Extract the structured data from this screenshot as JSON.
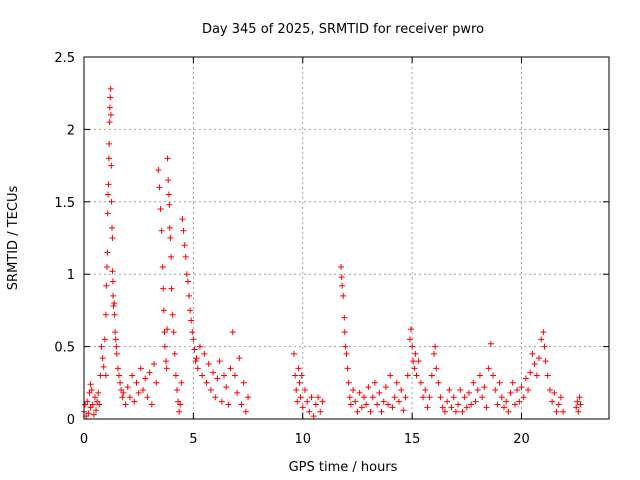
{
  "chart_data": {
    "type": "scatter",
    "title": "Day 345 of 2025, SRMTID for receiver pwro",
    "xlabel": "GPS time / hours",
    "ylabel": "SRMTID / TECUs",
    "xlim": [
      0,
      24
    ],
    "ylim": [
      0,
      2.5
    ],
    "xticks": [
      0,
      5,
      10,
      15,
      20
    ],
    "xtick_labels": [
      "0",
      "5",
      "10",
      "15",
      "20"
    ],
    "yticks": [
      0,
      0.5,
      1,
      1.5,
      2,
      2.5
    ],
    "ytick_labels": [
      "0",
      "0.5",
      "1",
      "1.5",
      "2",
      "2.5"
    ],
    "grid": true,
    "marker": "+",
    "marker_color": "#ff0000",
    "series": [
      {
        "name": "pwro",
        "points": [
          [
            0.0,
            0.05
          ],
          [
            0.05,
            0.1
          ],
          [
            0.1,
            0.02
          ],
          [
            0.15,
            0.12
          ],
          [
            0.2,
            0.04
          ],
          [
            0.25,
            0.18
          ],
          [
            0.3,
            0.08
          ],
          [
            0.3,
            0.24
          ],
          [
            0.35,
            0.2
          ],
          [
            0.4,
            0.1
          ],
          [
            0.45,
            0.03
          ],
          [
            0.5,
            0.15
          ],
          [
            0.55,
            0.06
          ],
          [
            0.6,
            0.12
          ],
          [
            0.65,
            0.18
          ],
          [
            0.7,
            0.1
          ],
          [
            0.75,
            0.3
          ],
          [
            0.8,
            0.5
          ],
          [
            0.85,
            0.42
          ],
          [
            0.9,
            0.36
          ],
          [
            0.95,
            0.55
          ],
          [
            1.0,
            0.3
          ],
          [
            1.0,
            0.72
          ],
          [
            1.02,
            0.92
          ],
          [
            1.05,
            1.05
          ],
          [
            1.07,
            1.15
          ],
          [
            1.08,
            1.42
          ],
          [
            1.1,
            1.55
          ],
          [
            1.12,
            1.62
          ],
          [
            1.14,
            1.8
          ],
          [
            1.15,
            1.9
          ],
          [
            1.17,
            2.05
          ],
          [
            1.18,
            2.15
          ],
          [
            1.2,
            2.22
          ],
          [
            1.22,
            2.28
          ],
          [
            1.23,
            2.1
          ],
          [
            1.25,
            1.75
          ],
          [
            1.26,
            1.5
          ],
          [
            1.28,
            1.32
          ],
          [
            1.3,
            1.25
          ],
          [
            1.3,
            1.02
          ],
          [
            1.32,
            0.95
          ],
          [
            1.33,
            0.85
          ],
          [
            1.35,
            0.78
          ],
          [
            1.38,
            0.8
          ],
          [
            1.4,
            0.72
          ],
          [
            1.42,
            0.6
          ],
          [
            1.45,
            0.55
          ],
          [
            1.48,
            0.5
          ],
          [
            1.5,
            0.45
          ],
          [
            1.55,
            0.35
          ],
          [
            1.6,
            0.3
          ],
          [
            1.65,
            0.25
          ],
          [
            1.7,
            0.2
          ],
          [
            1.75,
            0.15
          ],
          [
            1.8,
            0.18
          ],
          [
            1.9,
            0.1
          ],
          [
            2.0,
            0.22
          ],
          [
            2.1,
            0.15
          ],
          [
            2.2,
            0.3
          ],
          [
            2.3,
            0.12
          ],
          [
            2.4,
            0.25
          ],
          [
            2.5,
            0.18
          ],
          [
            2.6,
            0.35
          ],
          [
            2.7,
            0.2
          ],
          [
            2.8,
            0.28
          ],
          [
            2.9,
            0.15
          ],
          [
            3.0,
            0.32
          ],
          [
            3.1,
            0.1
          ],
          [
            3.2,
            0.38
          ],
          [
            3.3,
            0.25
          ],
          [
            3.4,
            1.72
          ],
          [
            3.45,
            1.6
          ],
          [
            3.5,
            1.45
          ],
          [
            3.55,
            1.3
          ],
          [
            3.6,
            1.05
          ],
          [
            3.62,
            0.9
          ],
          [
            3.65,
            0.75
          ],
          [
            3.68,
            0.6
          ],
          [
            3.7,
            0.5
          ],
          [
            3.75,
            0.4
          ],
          [
            3.78,
            0.35
          ],
          [
            3.8,
            0.62
          ],
          [
            3.82,
            1.8
          ],
          [
            3.85,
            1.65
          ],
          [
            3.88,
            1.55
          ],
          [
            3.9,
            1.48
          ],
          [
            3.92,
            1.32
          ],
          [
            3.95,
            1.25
          ],
          [
            3.98,
            1.12
          ],
          [
            4.0,
            0.9
          ],
          [
            4.05,
            0.72
          ],
          [
            4.1,
            0.6
          ],
          [
            4.15,
            0.45
          ],
          [
            4.2,
            0.3
          ],
          [
            4.25,
            0.2
          ],
          [
            4.3,
            0.12
          ],
          [
            4.35,
            0.05
          ],
          [
            4.4,
            0.1
          ],
          [
            4.45,
            0.25
          ],
          [
            4.5,
            1.38
          ],
          [
            4.55,
            1.3
          ],
          [
            4.6,
            1.2
          ],
          [
            4.65,
            1.12
          ],
          [
            4.7,
            1.0
          ],
          [
            4.75,
            0.95
          ],
          [
            4.8,
            0.85
          ],
          [
            4.85,
            0.75
          ],
          [
            4.9,
            0.68
          ],
          [
            4.95,
            0.6
          ],
          [
            5.0,
            0.55
          ],
          [
            5.05,
            0.48
          ],
          [
            5.1,
            0.4
          ],
          [
            5.15,
            0.42
          ],
          [
            5.2,
            0.35
          ],
          [
            5.3,
            0.5
          ],
          [
            5.4,
            0.3
          ],
          [
            5.5,
            0.45
          ],
          [
            5.6,
            0.25
          ],
          [
            5.7,
            0.38
          ],
          [
            5.8,
            0.2
          ],
          [
            5.9,
            0.32
          ],
          [
            6.0,
            0.15
          ],
          [
            6.1,
            0.28
          ],
          [
            6.2,
            0.4
          ],
          [
            6.3,
            0.12
          ],
          [
            6.4,
            0.3
          ],
          [
            6.5,
            0.22
          ],
          [
            6.6,
            0.1
          ],
          [
            6.7,
            0.35
          ],
          [
            6.8,
            0.6
          ],
          [
            6.9,
            0.3
          ],
          [
            7.0,
            0.18
          ],
          [
            7.1,
            0.42
          ],
          [
            7.2,
            0.1
          ],
          [
            7.3,
            0.25
          ],
          [
            7.4,
            0.05
          ],
          [
            7.5,
            0.15
          ],
          [
            9.6,
            0.45
          ],
          [
            9.65,
            0.3
          ],
          [
            9.7,
            0.2
          ],
          [
            9.75,
            0.12
          ],
          [
            9.8,
            0.35
          ],
          [
            9.85,
            0.25
          ],
          [
            9.9,
            0.15
          ],
          [
            9.95,
            0.3
          ],
          [
            10.0,
            0.08
          ],
          [
            10.1,
            0.2
          ],
          [
            10.2,
            0.12
          ],
          [
            10.3,
            0.05
          ],
          [
            10.4,
            0.15
          ],
          [
            10.5,
            0.02
          ],
          [
            10.6,
            0.1
          ],
          [
            10.7,
            0.15
          ],
          [
            10.8,
            0.05
          ],
          [
            10.9,
            0.12
          ],
          [
            11.75,
            1.05
          ],
          [
            11.78,
            0.98
          ],
          [
            11.8,
            0.92
          ],
          [
            11.85,
            0.85
          ],
          [
            11.9,
            0.7
          ],
          [
            11.92,
            0.6
          ],
          [
            11.95,
            0.5
          ],
          [
            12.0,
            0.45
          ],
          [
            12.05,
            0.35
          ],
          [
            12.1,
            0.25
          ],
          [
            12.15,
            0.15
          ],
          [
            12.2,
            0.1
          ],
          [
            12.3,
            0.2
          ],
          [
            12.4,
            0.12
          ],
          [
            12.5,
            0.05
          ],
          [
            12.6,
            0.18
          ],
          [
            12.7,
            0.08
          ],
          [
            12.8,
            0.15
          ],
          [
            12.9,
            0.1
          ],
          [
            13.0,
            0.22
          ],
          [
            13.1,
            0.05
          ],
          [
            13.2,
            0.15
          ],
          [
            13.3,
            0.25
          ],
          [
            13.4,
            0.1
          ],
          [
            13.5,
            0.18
          ],
          [
            13.6,
            0.05
          ],
          [
            13.7,
            0.12
          ],
          [
            13.8,
            0.22
          ],
          [
            13.9,
            0.1
          ],
          [
            14.0,
            0.3
          ],
          [
            14.1,
            0.08
          ],
          [
            14.2,
            0.15
          ],
          [
            14.3,
            0.25
          ],
          [
            14.4,
            0.12
          ],
          [
            14.5,
            0.2
          ],
          [
            14.6,
            0.06
          ],
          [
            14.7,
            0.15
          ],
          [
            14.8,
            0.3
          ],
          [
            14.9,
            0.55
          ],
          [
            14.95,
            0.62
          ],
          [
            15.0,
            0.5
          ],
          [
            15.05,
            0.4
          ],
          [
            15.1,
            0.35
          ],
          [
            15.15,
            0.45
          ],
          [
            15.2,
            0.3
          ],
          [
            15.3,
            0.4
          ],
          [
            15.4,
            0.25
          ],
          [
            15.5,
            0.15
          ],
          [
            15.6,
            0.2
          ],
          [
            15.7,
            0.08
          ],
          [
            15.8,
            0.15
          ],
          [
            15.9,
            0.3
          ],
          [
            16.0,
            0.45
          ],
          [
            16.05,
            0.5
          ],
          [
            16.1,
            0.35
          ],
          [
            16.2,
            0.25
          ],
          [
            16.3,
            0.15
          ],
          [
            16.4,
            0.08
          ],
          [
            16.5,
            0.05
          ],
          [
            16.6,
            0.12
          ],
          [
            16.7,
            0.2
          ],
          [
            16.8,
            0.08
          ],
          [
            16.9,
            0.15
          ],
          [
            17.0,
            0.05
          ],
          [
            17.1,
            0.1
          ],
          [
            17.2,
            0.2
          ],
          [
            17.3,
            0.05
          ],
          [
            17.4,
            0.15
          ],
          [
            17.5,
            0.08
          ],
          [
            17.6,
            0.18
          ],
          [
            17.7,
            0.1
          ],
          [
            17.8,
            0.25
          ],
          [
            17.9,
            0.12
          ],
          [
            18.0,
            0.2
          ],
          [
            18.1,
            0.3
          ],
          [
            18.2,
            0.15
          ],
          [
            18.3,
            0.22
          ],
          [
            18.4,
            0.08
          ],
          [
            18.5,
            0.35
          ],
          [
            18.6,
            0.52
          ],
          [
            18.7,
            0.3
          ],
          [
            18.8,
            0.2
          ],
          [
            18.9,
            0.1
          ],
          [
            19.0,
            0.25
          ],
          [
            19.1,
            0.15
          ],
          [
            19.2,
            0.08
          ],
          [
            19.3,
            0.12
          ],
          [
            19.4,
            0.05
          ],
          [
            19.5,
            0.18
          ],
          [
            19.6,
            0.25
          ],
          [
            19.7,
            0.1
          ],
          [
            19.8,
            0.2
          ],
          [
            19.9,
            0.12
          ],
          [
            20.0,
            0.22
          ],
          [
            20.1,
            0.15
          ],
          [
            20.2,
            0.28
          ],
          [
            20.3,
            0.2
          ],
          [
            20.4,
            0.32
          ],
          [
            20.5,
            0.45
          ],
          [
            20.6,
            0.38
          ],
          [
            20.7,
            0.3
          ],
          [
            20.8,
            0.42
          ],
          [
            20.9,
            0.55
          ],
          [
            21.0,
            0.6
          ],
          [
            21.05,
            0.5
          ],
          [
            21.1,
            0.4
          ],
          [
            21.2,
            0.3
          ],
          [
            21.3,
            0.2
          ],
          [
            21.4,
            0.12
          ],
          [
            21.5,
            0.18
          ],
          [
            21.6,
            0.05
          ],
          [
            21.7,
            0.1
          ],
          [
            21.8,
            0.15
          ],
          [
            21.9,
            0.05
          ],
          [
            22.5,
            0.08
          ],
          [
            22.55,
            0.12
          ],
          [
            22.6,
            0.05
          ],
          [
            22.65,
            0.15
          ],
          [
            22.7,
            0.1
          ]
        ]
      }
    ]
  }
}
